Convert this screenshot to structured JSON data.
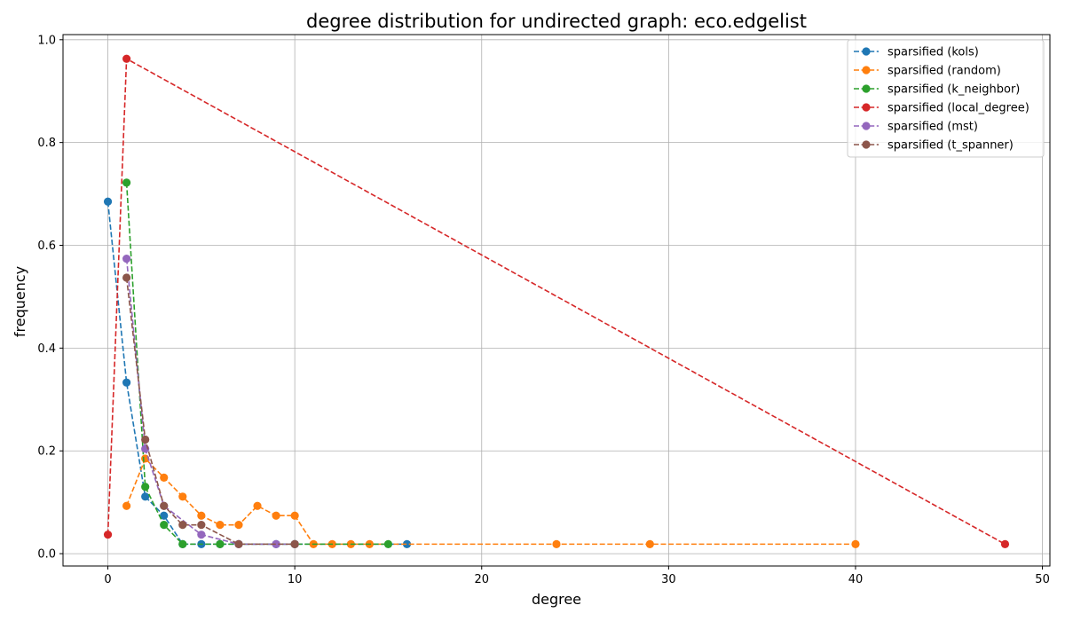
{
  "chart_data": {
    "type": "line",
    "title": "degree distribution for undirected graph: eco.edgelist",
    "xlabel": "degree",
    "ylabel": "frequency",
    "xlim": [
      -2.4,
      50.4
    ],
    "ylim": [
      -0.024,
      1.01
    ],
    "xticks": [
      "0",
      "10",
      "20",
      "30",
      "40",
      "50"
    ],
    "yticks": [
      "0.0",
      "0.2",
      "0.4",
      "0.6",
      "0.8",
      "1.0"
    ],
    "grid": true,
    "legend_position": "top-right",
    "series": [
      {
        "name": "sparsified (kols)",
        "color": "#1f77b4",
        "points": [
          [
            0,
            0.685
          ],
          [
            1,
            0.333
          ],
          [
            2,
            0.111
          ],
          [
            3,
            0.074
          ],
          [
            4,
            0.0185
          ],
          [
            5,
            0.0185
          ],
          [
            6,
            0.0185
          ],
          [
            7,
            0.0185
          ],
          [
            9,
            0.0185
          ],
          [
            10,
            0.0185
          ],
          [
            16,
            0.0185
          ]
        ]
      },
      {
        "name": "sparsified (random)",
        "color": "#ff7f0e",
        "points": [
          [
            1,
            0.093
          ],
          [
            2,
            0.185
          ],
          [
            3,
            0.148
          ],
          [
            4,
            0.111
          ],
          [
            5,
            0.074
          ],
          [
            6,
            0.056
          ],
          [
            7,
            0.056
          ],
          [
            8,
            0.093
          ],
          [
            9,
            0.074
          ],
          [
            10,
            0.074
          ],
          [
            11,
            0.0185
          ],
          [
            12,
            0.0185
          ],
          [
            13,
            0.0185
          ],
          [
            14,
            0.0185
          ],
          [
            24,
            0.0185
          ],
          [
            29,
            0.0185
          ],
          [
            40,
            0.0185
          ]
        ]
      },
      {
        "name": "sparsified (k_neighbor)",
        "color": "#2ca02c",
        "points": [
          [
            1,
            0.722
          ],
          [
            2,
            0.13
          ],
          [
            3,
            0.056
          ],
          [
            4,
            0.0185
          ],
          [
            6,
            0.0185
          ],
          [
            10,
            0.0185
          ],
          [
            15,
            0.0185
          ]
        ]
      },
      {
        "name": "sparsified (local_degree)",
        "color": "#d62728",
        "points": [
          [
            0,
            0.037
          ],
          [
            1,
            0.963
          ],
          [
            48,
            0.0185
          ]
        ]
      },
      {
        "name": "sparsified (mst)",
        "color": "#9467bd",
        "points": [
          [
            1,
            0.574
          ],
          [
            2,
            0.204
          ],
          [
            3,
            0.093
          ],
          [
            5,
            0.037
          ],
          [
            7,
            0.0185
          ],
          [
            9,
            0.0185
          ],
          [
            10,
            0.0185
          ]
        ]
      },
      {
        "name": "sparsified (t_spanner)",
        "color": "#8c564b",
        "points": [
          [
            1,
            0.537
          ],
          [
            2,
            0.222
          ],
          [
            3,
            0.093
          ],
          [
            4,
            0.056
          ],
          [
            5,
            0.056
          ],
          [
            7,
            0.0185
          ],
          [
            10,
            0.0185
          ]
        ]
      }
    ]
  }
}
